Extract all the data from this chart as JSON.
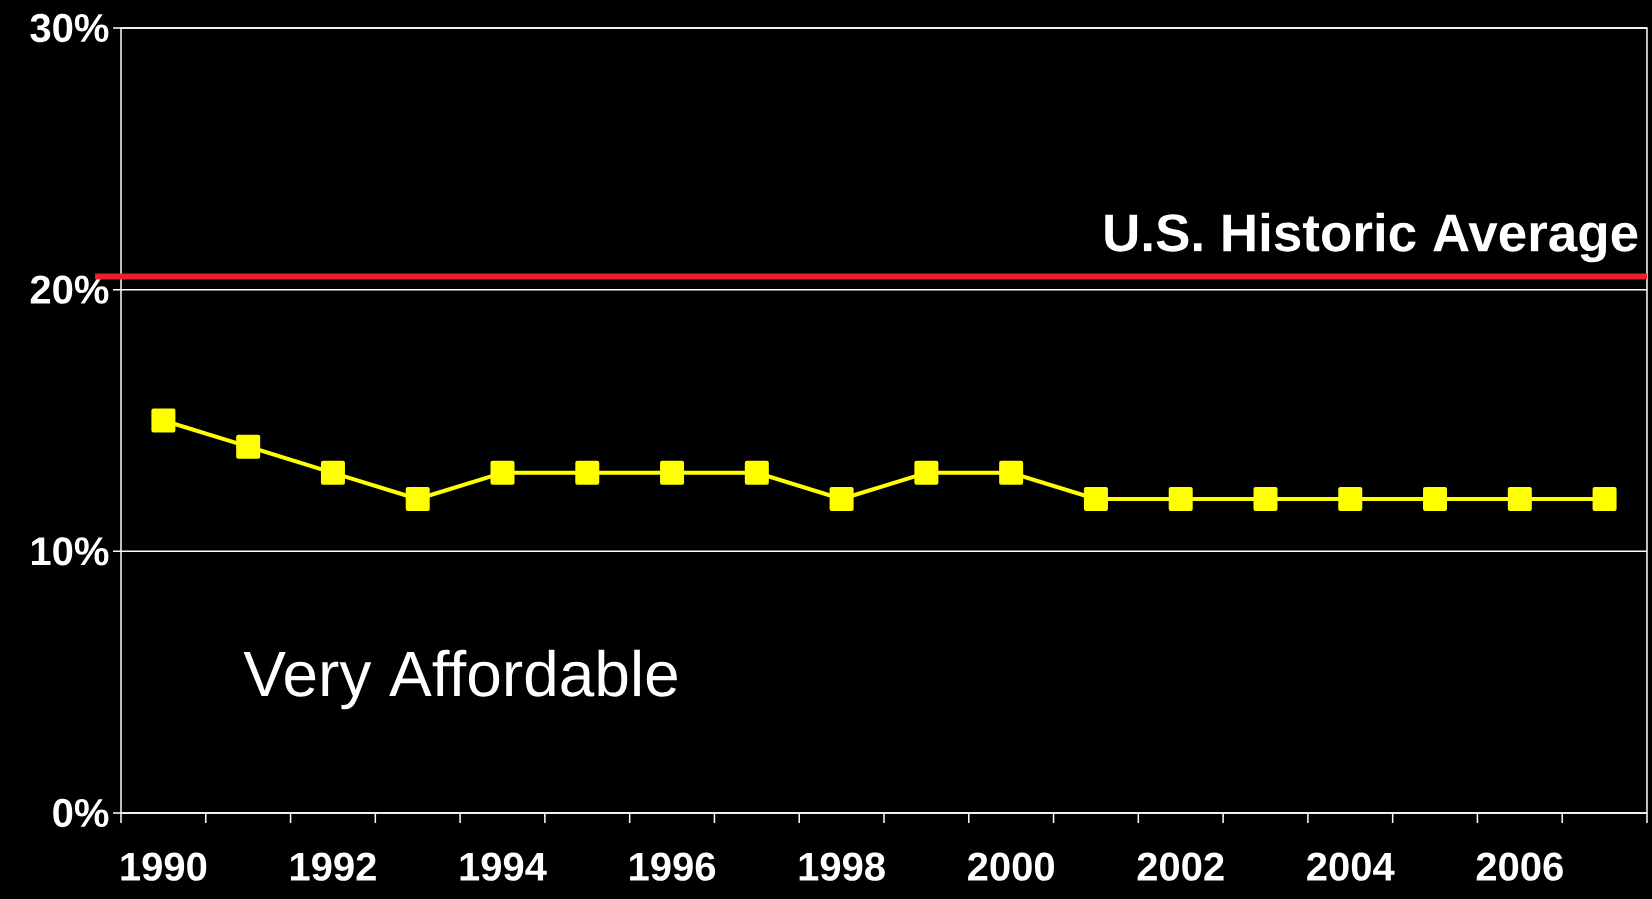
{
  "chart_data": {
    "type": "line",
    "categories": [
      "1990",
      null,
      "1992",
      null,
      "1994",
      null,
      "1996",
      null,
      "1998",
      null,
      "2000",
      null,
      "2002",
      null,
      "2004",
      null,
      "2006",
      null
    ],
    "series": [
      {
        "color": "#ffff00",
        "values": [
          15,
          14,
          13,
          12,
          13,
          13,
          13,
          13,
          12,
          13,
          13,
          12,
          12,
          12,
          12,
          12,
          12,
          12
        ]
      }
    ],
    "ylim": [
      0,
      30
    ],
    "yticks": [
      {
        "value": 0,
        "label": "0%"
      },
      {
        "value": 10,
        "label": "10%"
      },
      {
        "value": 20,
        "label": "20%"
      },
      {
        "value": 30,
        "label": "30%"
      }
    ],
    "grid": "y",
    "marker": "square",
    "line_style": "solid",
    "ref_lines": [
      {
        "axis": "y",
        "value": 20.5,
        "label": "U.S. Historic Average",
        "color": "#e8222a"
      }
    ],
    "annotations": [
      "Very Affordable"
    ]
  }
}
